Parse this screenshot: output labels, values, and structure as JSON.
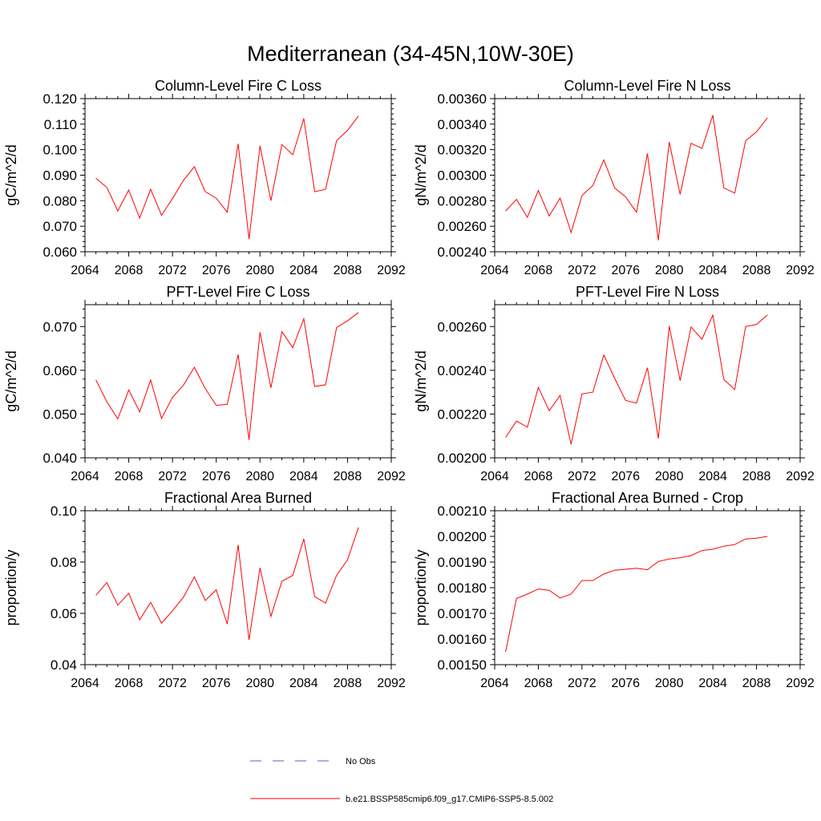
{
  "figure": {
    "title": "Mediterranean (34-45N,10W-30E)",
    "series_color": "#ff0000",
    "obs_color": "#5b5bd6"
  },
  "legend": {
    "obs_label": "No Obs",
    "model_label": "b.e21.BSSP585cmip6.f09_g17.CMIP6-SSP5-8.5.002"
  },
  "chart_data": [
    {
      "type": "line",
      "title": "Column-Level Fire C Loss",
      "ylabel": "gC/m^2/d",
      "xlim": [
        2064,
        2092
      ],
      "ylim": [
        0.06,
        0.12
      ],
      "xticks": [
        "2064",
        "2068",
        "2072",
        "2076",
        "2080",
        "2084",
        "2088",
        "2092"
      ],
      "yticks": [
        "0.060",
        "0.070",
        "0.080",
        "0.090",
        "0.100",
        "0.110",
        "0.120"
      ],
      "x": [
        2065,
        2066,
        2067,
        2068,
        2069,
        2070,
        2071,
        2072,
        2073,
        2074,
        2075,
        2076,
        2077,
        2078,
        2079,
        2080,
        2081,
        2082,
        2083,
        2084,
        2085,
        2086,
        2087,
        2088,
        2089
      ],
      "values": [
        0.0888,
        0.0852,
        0.076,
        0.0842,
        0.0732,
        0.0845,
        0.0743,
        0.0808,
        0.088,
        0.0933,
        0.0835,
        0.081,
        0.0755,
        0.1023,
        0.065,
        0.1015,
        0.08,
        0.102,
        0.098,
        0.1122,
        0.0835,
        0.0845,
        0.1035,
        0.1075,
        0.1132
      ]
    },
    {
      "type": "line",
      "title": "Column-Level Fire N Loss",
      "ylabel": "gN/m^2/d",
      "xlim": [
        2064,
        2092
      ],
      "ylim": [
        0.0024,
        0.0036
      ],
      "xticks": [
        "2064",
        "2068",
        "2072",
        "2076",
        "2080",
        "2084",
        "2088",
        "2092"
      ],
      "yticks": [
        "0.00240",
        "0.00260",
        "0.00280",
        "0.00300",
        "0.00320",
        "0.00340",
        "0.00360"
      ],
      "x": [
        2065,
        2066,
        2067,
        2068,
        2069,
        2070,
        2071,
        2072,
        2073,
        2074,
        2075,
        2076,
        2077,
        2078,
        2079,
        2080,
        2081,
        2082,
        2083,
        2084,
        2085,
        2086,
        2087,
        2088,
        2089
      ],
      "values": [
        0.00272,
        0.00281,
        0.00267,
        0.00288,
        0.00268,
        0.00282,
        0.00255,
        0.00284,
        0.00292,
        0.00312,
        0.0029,
        0.00283,
        0.00271,
        0.00317,
        0.00249,
        0.00326,
        0.00285,
        0.00325,
        0.00321,
        0.00347,
        0.0029,
        0.00286,
        0.00327,
        0.00334,
        0.00345
      ]
    },
    {
      "type": "line",
      "title": "PFT-Level Fire C Loss",
      "ylabel": "gC/m^2/d",
      "xlim": [
        2064,
        2092
      ],
      "ylim": [
        0.04,
        0.075
      ],
      "xticks": [
        "2064",
        "2068",
        "2072",
        "2076",
        "2080",
        "2084",
        "2088",
        "2092"
      ],
      "yticks": [
        "0.040",
        "0.050",
        "0.060",
        "0.070"
      ],
      "ytick_values": [
        0.04,
        0.05,
        0.06,
        0.07
      ],
      "x": [
        2065,
        2066,
        2067,
        2068,
        2069,
        2070,
        2071,
        2072,
        2073,
        2074,
        2075,
        2076,
        2077,
        2078,
        2079,
        2080,
        2081,
        2082,
        2083,
        2084,
        2085,
        2086,
        2087,
        2088,
        2089
      ],
      "values": [
        0.0578,
        0.0528,
        0.0489,
        0.0555,
        0.0505,
        0.0578,
        0.049,
        0.0538,
        0.0566,
        0.0607,
        0.0558,
        0.052,
        0.0522,
        0.0636,
        0.0441,
        0.0687,
        0.056,
        0.0688,
        0.0652,
        0.0718,
        0.0563,
        0.0567,
        0.0698,
        0.0713,
        0.0732
      ]
    },
    {
      "type": "line",
      "title": "PFT-Level Fire N Loss",
      "ylabel": "gN/m^2/d",
      "xlim": [
        2064,
        2092
      ],
      "ylim": [
        0.002,
        0.0027
      ],
      "xticks": [
        "2064",
        "2068",
        "2072",
        "2076",
        "2080",
        "2084",
        "2088",
        "2092"
      ],
      "yticks": [
        "0.00200",
        "0.00220",
        "0.00240",
        "0.00260"
      ],
      "ytick_values": [
        0.002,
        0.0022,
        0.0024,
        0.0026
      ],
      "x": [
        2065,
        2066,
        2067,
        2068,
        2069,
        2070,
        2071,
        2072,
        2073,
        2074,
        2075,
        2076,
        2077,
        2078,
        2079,
        2080,
        2081,
        2082,
        2083,
        2084,
        2085,
        2086,
        2087,
        2088,
        2089
      ],
      "values": [
        0.002093,
        0.002168,
        0.00214,
        0.002322,
        0.002215,
        0.002285,
        0.002062,
        0.002292,
        0.0023,
        0.00247,
        0.002363,
        0.002262,
        0.00225,
        0.002412,
        0.002088,
        0.002602,
        0.002353,
        0.002598,
        0.002542,
        0.002652,
        0.002358,
        0.002312,
        0.0026,
        0.00261,
        0.002653
      ]
    },
    {
      "type": "line",
      "title": "Fractional Area Burned",
      "ylabel": "proportion/y",
      "xlim": [
        2064,
        2092
      ],
      "ylim": [
        0.04,
        0.1
      ],
      "xticks": [
        "2064",
        "2068",
        "2072",
        "2076",
        "2080",
        "2084",
        "2088",
        "2092"
      ],
      "yticks": [
        "0.04",
        "0.06",
        "0.08",
        "0.10"
      ],
      "x": [
        2065,
        2066,
        2067,
        2068,
        2069,
        2070,
        2071,
        2072,
        2073,
        2074,
        2075,
        2076,
        2077,
        2078,
        2079,
        2080,
        2081,
        2082,
        2083,
        2084,
        2085,
        2086,
        2087,
        2088,
        2089
      ],
      "values": [
        0.067,
        0.072,
        0.0632,
        0.0678,
        0.0575,
        0.0643,
        0.0562,
        0.061,
        0.0663,
        0.0742,
        0.065,
        0.0692,
        0.0558,
        0.0867,
        0.0497,
        0.0777,
        0.0588,
        0.0725,
        0.0748,
        0.089,
        0.0665,
        0.064,
        0.0748,
        0.0808,
        0.0935
      ]
    },
    {
      "type": "line",
      "title": "Fractional Area Burned - Crop",
      "ylabel": "proportion/y",
      "xlim": [
        2064,
        2092
      ],
      "ylim": [
        0.0015,
        0.0021
      ],
      "xticks": [
        "2064",
        "2068",
        "2072",
        "2076",
        "2080",
        "2084",
        "2088",
        "2092"
      ],
      "yticks": [
        "0.00150",
        "0.00160",
        "0.00170",
        "0.00180",
        "0.00190",
        "0.00200",
        "0.00210"
      ],
      "x": [
        2065,
        2066,
        2067,
        2068,
        2069,
        2070,
        2071,
        2072,
        2073,
        2074,
        2075,
        2076,
        2077,
        2078,
        2079,
        2080,
        2081,
        2082,
        2083,
        2084,
        2085,
        2086,
        2087,
        2088,
        2089
      ],
      "values": [
        0.00155,
        0.001758,
        0.001775,
        0.001795,
        0.00179,
        0.00176,
        0.001775,
        0.001828,
        0.001828,
        0.001853,
        0.001868,
        0.001872,
        0.001876,
        0.00187,
        0.001902,
        0.001912,
        0.001917,
        0.001925,
        0.001945,
        0.00195,
        0.001962,
        0.001968,
        0.00199,
        0.001993,
        0.002
      ]
    }
  ]
}
